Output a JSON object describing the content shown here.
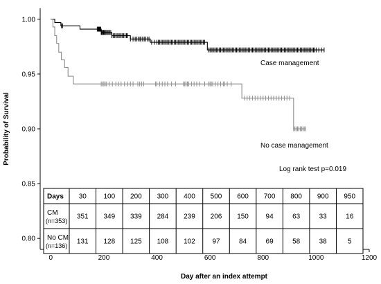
{
  "chart_data": {
    "type": "line",
    "subtype": "kaplan-meier step",
    "xlabel": "Day after an index attempt",
    "ylabel": "Probability of Survival",
    "xlim": [
      -40,
      1200
    ],
    "ylim": [
      0.79,
      1.01
    ],
    "x_ticks": [
      0,
      200,
      400,
      600,
      800,
      1000,
      1200
    ],
    "y_ticks": [
      0.8,
      0.85,
      0.9,
      0.95,
      1.0
    ],
    "y_tick_labels": [
      "0.80",
      "0.85",
      "0.90",
      "0.95",
      "1.00"
    ],
    "grid": false,
    "series": [
      {
        "name": "Case management",
        "color": "#000000",
        "steps": [
          [
            0,
            1.0
          ],
          [
            15,
            0.997
          ],
          [
            38,
            0.994
          ],
          [
            110,
            0.991
          ],
          [
            190,
            0.988
          ],
          [
            230,
            0.985
          ],
          [
            300,
            0.982
          ],
          [
            375,
            0.979
          ],
          [
            590,
            0.972
          ],
          [
            1030,
            0.972
          ]
        ],
        "censor_x": [
          40,
          45,
          175,
          178,
          180,
          182,
          184,
          186,
          188,
          190,
          192,
          195,
          198,
          200,
          203,
          206,
          210,
          214,
          218,
          222,
          226,
          230,
          235,
          240,
          245,
          250,
          255,
          260,
          265,
          270,
          275,
          280,
          285,
          290,
          300,
          310,
          318,
          324,
          330,
          336,
          340,
          346,
          352,
          358,
          364,
          370,
          380,
          390,
          400,
          405,
          410,
          415,
          420,
          425,
          430,
          435,
          440,
          445,
          450,
          455,
          460,
          465,
          470,
          475,
          480,
          485,
          490,
          495,
          500,
          505,
          510,
          515,
          520,
          525,
          530,
          535,
          540,
          545,
          550,
          555,
          560,
          565,
          570,
          575,
          580,
          595,
          600,
          605,
          610,
          615,
          620,
          625,
          630,
          635,
          640,
          645,
          650,
          655,
          660,
          665,
          670,
          675,
          680,
          685,
          690,
          695,
          700,
          705,
          710,
          715,
          720,
          725,
          730,
          735,
          740,
          745,
          750,
          755,
          760,
          765,
          770,
          775,
          780,
          785,
          790,
          795,
          800,
          805,
          810,
          815,
          820,
          825,
          830,
          835,
          840,
          845,
          850,
          855,
          860,
          865,
          870,
          875,
          880,
          885,
          890,
          895,
          900,
          905,
          910,
          915,
          920,
          925,
          930,
          935,
          940,
          945,
          950,
          955,
          960,
          965,
          970,
          975,
          980,
          985,
          990,
          995,
          1000,
          1010,
          1020,
          1030
        ]
      },
      {
        "name": "No case management",
        "color": "#8c8c8c",
        "steps": [
          [
            0,
            1.0
          ],
          [
            8,
            0.993
          ],
          [
            15,
            0.985
          ],
          [
            22,
            0.978
          ],
          [
            30,
            0.97
          ],
          [
            40,
            0.963
          ],
          [
            52,
            0.956
          ],
          [
            65,
            0.948
          ],
          [
            85,
            0.941
          ],
          [
            720,
            0.928
          ],
          [
            915,
            0.9
          ],
          [
            960,
            0.9
          ]
        ],
        "censor_x": [
          190,
          195,
          200,
          205,
          210,
          220,
          232,
          245,
          255,
          265,
          278,
          290,
          300,
          310,
          328,
          335,
          342,
          350,
          395,
          400,
          410,
          420,
          430,
          440,
          455,
          470,
          500,
          505,
          510,
          515,
          520,
          530,
          540,
          550,
          560,
          580,
          595,
          600,
          605,
          610,
          620,
          630,
          640,
          650,
          655,
          665,
          680,
          730,
          740,
          750,
          760,
          770,
          780,
          790,
          800,
          810,
          820,
          830,
          840,
          850,
          860,
          870,
          880,
          890,
          900,
          915,
          920,
          925,
          930,
          935,
          940,
          945,
          950,
          955,
          960
        ]
      }
    ],
    "annotations": {
      "case_management": "Case management",
      "no_case_management": "No case management",
      "log_rank": "Log rank test p=0.019"
    },
    "risk_table": {
      "header_label": "Days",
      "days": [
        "30",
        "100",
        "200",
        "300",
        "400",
        "500",
        "600",
        "700",
        "800",
        "900",
        "950"
      ],
      "rows": [
        {
          "label_line1": "CM",
          "label_line2": "(n=353)",
          "values": [
            "351",
            "349",
            "339",
            "284",
            "239",
            "206",
            "150",
            "94",
            "63",
            "33",
            "16"
          ]
        },
        {
          "label_line1": "No CM",
          "label_line2": "(n=136)",
          "values": [
            "131",
            "128",
            "125",
            "108",
            "102",
            "97",
            "84",
            "69",
            "58",
            "38",
            "5"
          ]
        }
      ]
    }
  }
}
